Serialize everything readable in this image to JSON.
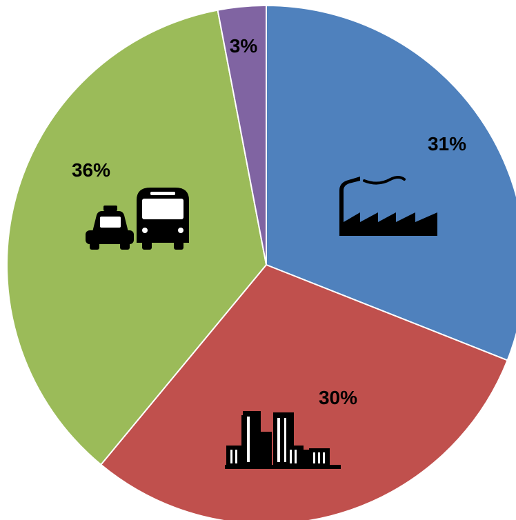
{
  "chart_data": {
    "type": "pie",
    "title": "",
    "slices": [
      {
        "label": "31%",
        "value": 31,
        "color": "#4F81BD",
        "icon": "factory-icon"
      },
      {
        "label": "30%",
        "value": 30,
        "color": "#C0504D",
        "icon": "city-buildings-icon"
      },
      {
        "label": "36%",
        "value": 36,
        "color": "#9BBB59",
        "icon": "taxi-and-bus-icon"
      },
      {
        "label": "3%",
        "value": 3,
        "color": "#8064A2",
        "icon": ""
      }
    ],
    "start_angle_deg": 0,
    "direction": "clockwise",
    "legend": "none"
  }
}
